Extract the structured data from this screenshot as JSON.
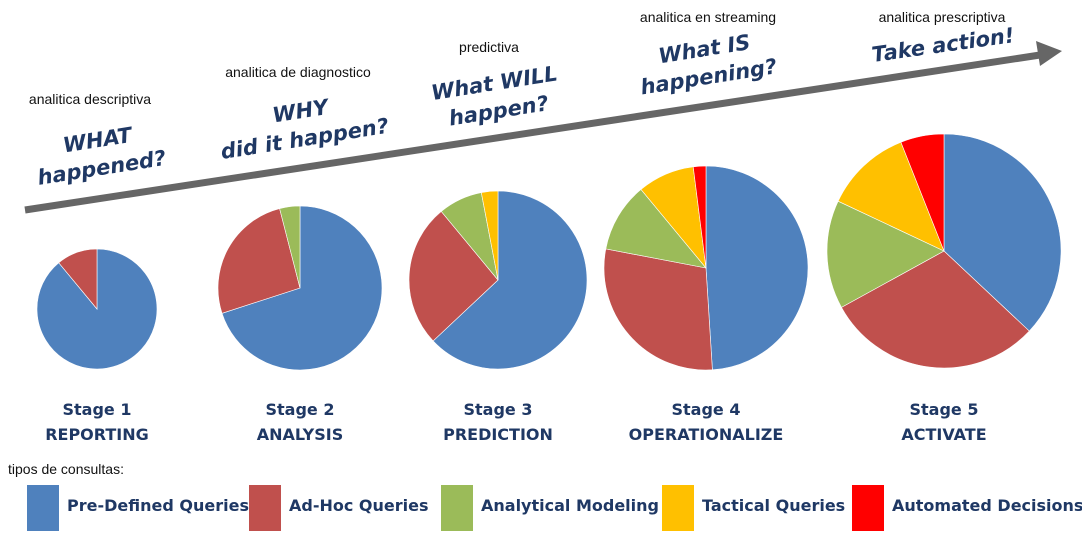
{
  "chart_data": {
    "type": "pie",
    "categories": [
      "Pre-Defined Queries",
      "Ad-Hoc Queries",
      "Analytical Modeling",
      "Tactical Queries",
      "Automated Decisions"
    ],
    "colors": [
      "#4f81bd",
      "#c0504d",
      "#9bbb59",
      "#ffc000",
      "#ff0000"
    ],
    "legend_title": "tipos de consultas:",
    "legend_position": "bottom",
    "pies": [
      {
        "stage": "Stage 1",
        "name": "REPORTING",
        "subtitle": "analitica descriptiva",
        "question": [
          "WHAT",
          "happened?"
        ],
        "values": [
          89,
          11,
          0,
          0,
          0
        ]
      },
      {
        "stage": "Stage 2",
        "name": "ANALYSIS",
        "subtitle": "analitica de diagnostico",
        "question": [
          "WHY",
          "did it happen?"
        ],
        "values": [
          70,
          26,
          4,
          0,
          0
        ]
      },
      {
        "stage": "Stage 3",
        "name": "PREDICTION",
        "subtitle": "predictiva",
        "question": [
          "What WILL",
          "happen?"
        ],
        "values": [
          63,
          26,
          8,
          3,
          0
        ]
      },
      {
        "stage": "Stage 4",
        "name": "OPERATIONALIZE",
        "subtitle": "analitica en streaming",
        "question": [
          "What IS",
          "happening?"
        ],
        "values": [
          49,
          29,
          11,
          9,
          2
        ]
      },
      {
        "stage": "Stage 5",
        "name": "ACTIVATE",
        "subtitle": "analitica prescriptiva",
        "question": [
          "Take action!"
        ],
        "values": [
          37,
          30,
          15,
          12,
          6
        ]
      }
    ]
  }
}
